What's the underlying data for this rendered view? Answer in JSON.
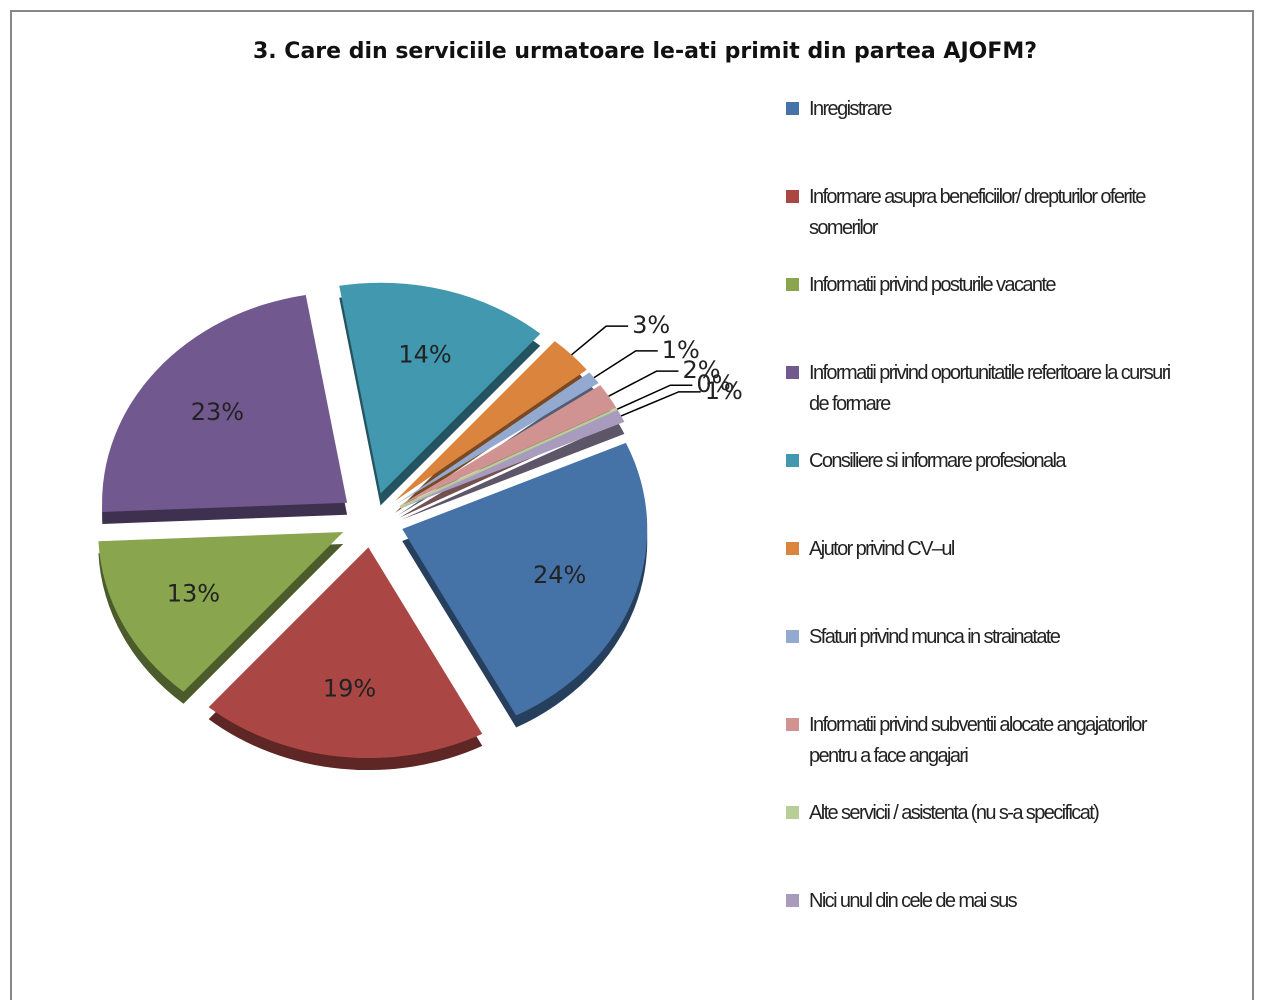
{
  "chart_data": {
    "type": "pie",
    "title": "3. Care din serviciile urmatoare le-ati primit din partea AJOFM?",
    "categories": [
      "Inregistrare",
      "Informare asupra beneficiilor/ drepturilor oferite somerilor",
      "Informatii privind posturile vacante",
      "Informatii privind oportunitatile referitoare la cursuri de formare",
      "Consiliere si informare profesionala",
      "Ajutor privind CV–ul",
      "Sfaturi privind munca in strainatate",
      "Informatii privind subventii alocate angajatorilor pentru a face angajari",
      "Alte servicii / asistenta (nu s-a specificat)",
      "Nici unul din cele de mai sus"
    ],
    "values": [
      24,
      19,
      13,
      23,
      14,
      3,
      1,
      2,
      0,
      1
    ],
    "value_labels": [
      "24%",
      "19%",
      "13%",
      "23%",
      "14%",
      "3%",
      "1%",
      "2%",
      "0%",
      "1%"
    ],
    "colors": [
      "#4572a7",
      "#aa4643",
      "#89a54e",
      "#71588f",
      "#4198af",
      "#db843d",
      "#93a9cf",
      "#d19392",
      "#b9cd96",
      "#a99bbd"
    ],
    "legend": "right"
  }
}
